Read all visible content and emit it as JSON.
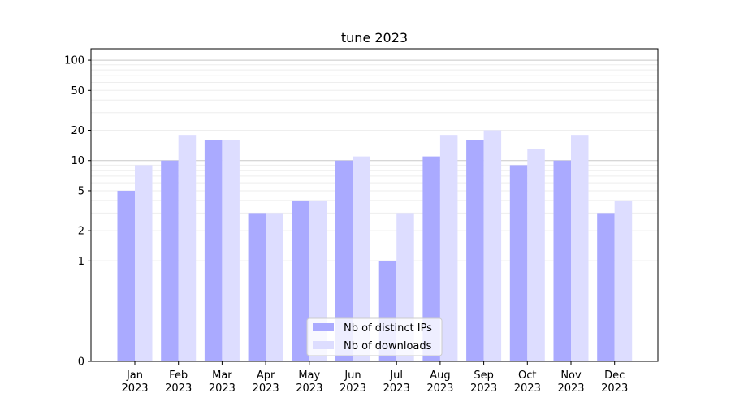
{
  "chart_data": {
    "type": "bar",
    "title": "tune 2023",
    "categories": [
      "Jan\n2023",
      "Feb\n2023",
      "Mar\n2023",
      "Apr\n2023",
      "May\n2023",
      "Jun\n2023",
      "Jul\n2023",
      "Aug\n2023",
      "Sep\n2023",
      "Oct\n2023",
      "Nov\n2023",
      "Dec\n2023"
    ],
    "series": [
      {
        "name": "Nb of distinct IPs",
        "values": [
          5,
          10,
          16,
          3,
          4,
          10,
          1,
          11,
          16,
          9,
          10,
          3
        ],
        "color": "#aaaaff"
      },
      {
        "name": "Nb of downloads",
        "values": [
          9,
          18,
          16,
          3,
          4,
          11,
          3,
          18,
          20,
          13,
          18,
          4
        ],
        "color": "#ddddff"
      }
    ],
    "yscale": "symlog",
    "yticks": [
      0,
      1,
      2,
      5,
      10,
      20,
      50,
      100
    ],
    "ylim": [
      0,
      130
    ],
    "grid": true,
    "legend_position": "lower center"
  }
}
